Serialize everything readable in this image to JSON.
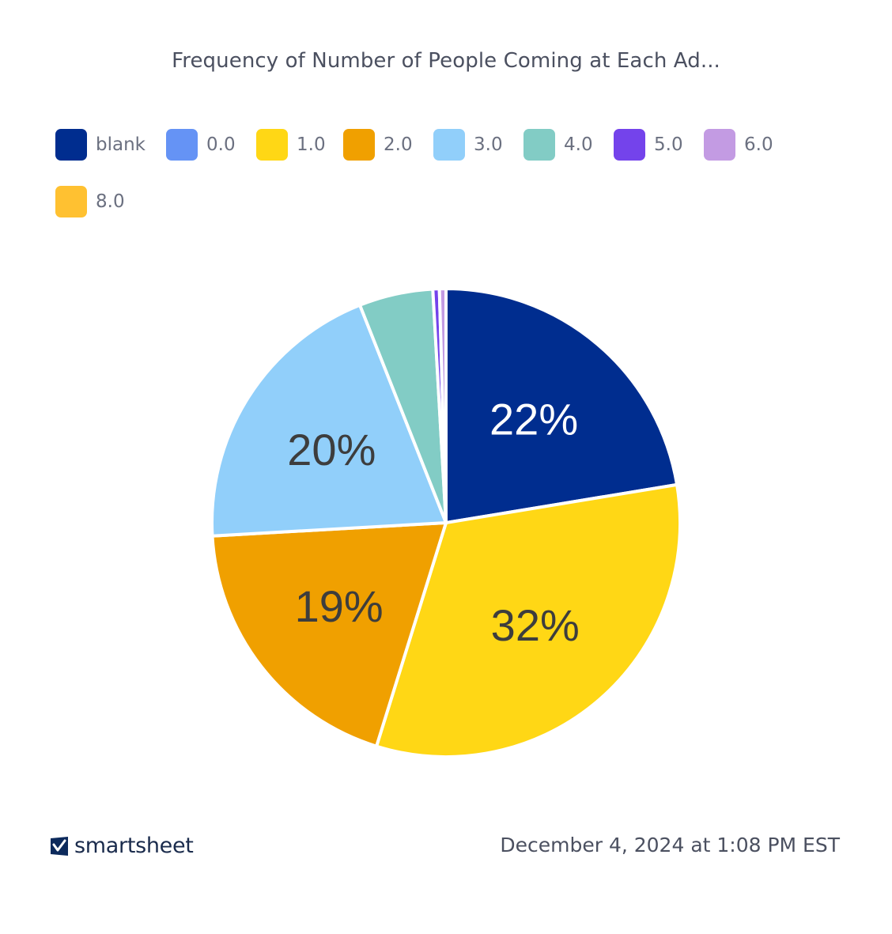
{
  "chart_data": {
    "type": "pie",
    "title": "Frequency of Number of People Coming at Each Ad...",
    "legend_position": "top",
    "slices": [
      {
        "label": "blank",
        "value": 22.4,
        "color": "#002d8f",
        "display": "22%",
        "text_color": "#ffffff"
      },
      {
        "label": "0.0",
        "value": 0.0,
        "color": "#6593f5",
        "display": "",
        "text_color": "#ffffff"
      },
      {
        "label": "1.0",
        "value": 32.4,
        "color": "#ffd715",
        "display": "32%",
        "text_color": "#3d3d3d"
      },
      {
        "label": "2.0",
        "value": 19.3,
        "color": "#f0a000",
        "display": "19%",
        "text_color": "#3d3d3d"
      },
      {
        "label": "3.0",
        "value": 19.9,
        "color": "#91cffa",
        "display": "20%",
        "text_color": "#3d3d3d"
      },
      {
        "label": "4.0",
        "value": 5.1,
        "color": "#82ccc5",
        "display": "",
        "text_color": "#3d3d3d"
      },
      {
        "label": "5.0",
        "value": 0.45,
        "color": "#7443eb",
        "display": "",
        "text_color": "#ffffff"
      },
      {
        "label": "6.0",
        "value": 0.45,
        "color": "#c39be3",
        "display": "",
        "text_color": "#3d3d3d"
      },
      {
        "label": "8.0",
        "value": 0.0,
        "color": "#ffc131",
        "display": "",
        "text_color": "#3d3d3d"
      }
    ]
  },
  "footer": {
    "brand": "smartsheet",
    "timestamp": "December 4, 2024 at 1:08 PM EST",
    "brand_icon": "smartsheet-check-icon"
  }
}
